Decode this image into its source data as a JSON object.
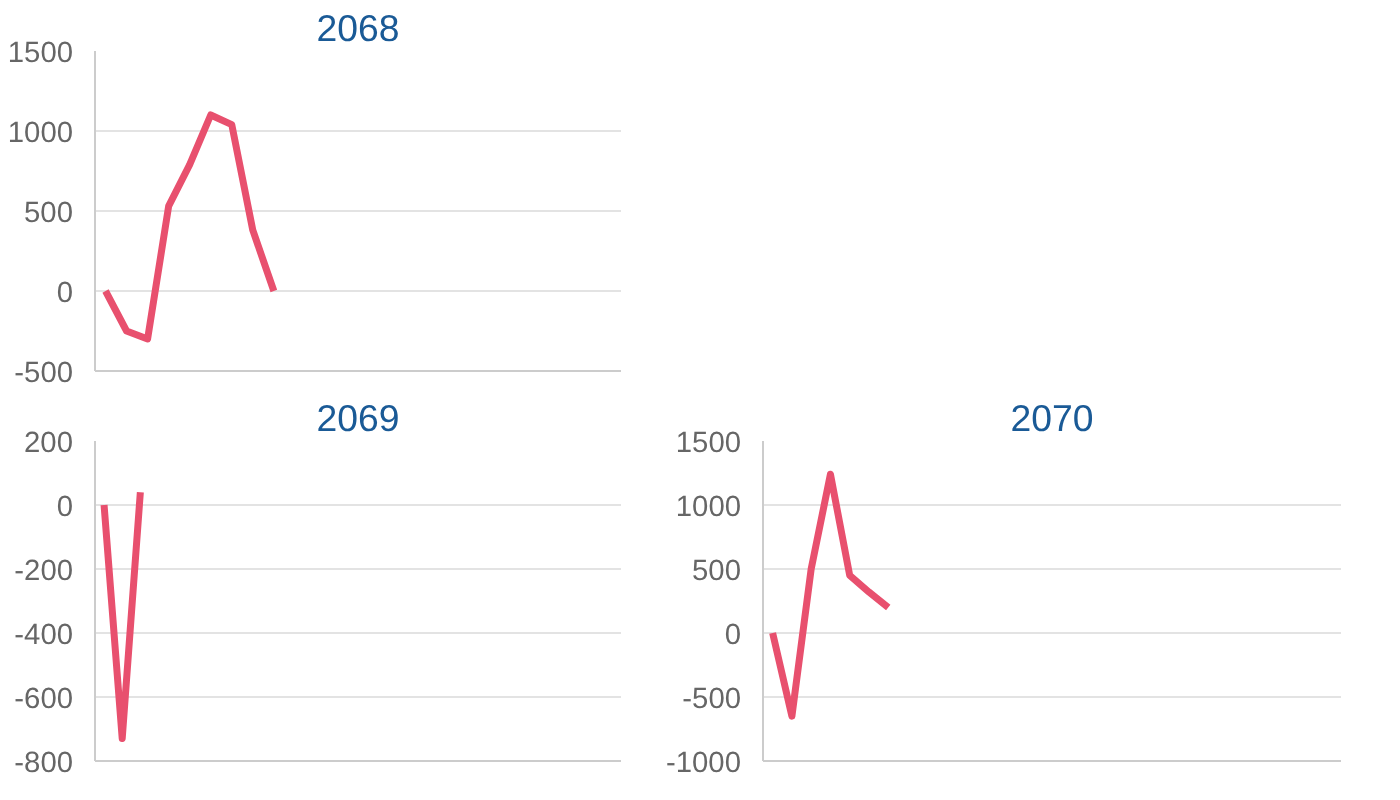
{
  "chart_data": [
    {
      "type": "line",
      "title": "2068",
      "categories": [
        null,
        null,
        null,
        null,
        null,
        null,
        null,
        null,
        null,
        null,
        null,
        null,
        null,
        null,
        null,
        null,
        null,
        null,
        null,
        null,
        null,
        null,
        null,
        null,
        null
      ],
      "series": [
        {
          "color": "#e8506e",
          "values": [
            0,
            -250,
            -300,
            530,
            790,
            1100,
            1040,
            380,
            0,
            null,
            null,
            null,
            null,
            null,
            null,
            null,
            null,
            null,
            null,
            null,
            null,
            null,
            null,
            null,
            null
          ]
        }
      ],
      "ylim": [
        -500,
        1500
      ],
      "yticks": [
        -500,
        0,
        500,
        1000,
        1500
      ],
      "grid": "y",
      "tick_labels": "y",
      "marker": "none",
      "line_style": "solid"
    },
    {
      "type": "line",
      "title": "2069",
      "categories": [
        null,
        null,
        null,
        null,
        null,
        null,
        null,
        null,
        null,
        null,
        null,
        null,
        null,
        null,
        null,
        null,
        null,
        null,
        null,
        null,
        null,
        null,
        null,
        null,
        null,
        null,
        null,
        null,
        null
      ],
      "series": [
        {
          "color": "#e8506e",
          "values": [
            0,
            -730,
            40,
            null,
            null,
            null,
            null,
            null,
            null,
            null,
            null,
            null,
            null,
            null,
            null,
            null,
            null,
            null,
            null,
            null,
            null,
            null,
            null,
            null,
            null,
            null,
            null,
            null,
            null
          ]
        }
      ],
      "ylim": [
        -800,
        200
      ],
      "yticks": [
        -800,
        -600,
        -400,
        -200,
        0,
        200
      ],
      "grid": "y",
      "tick_labels": "y",
      "marker": "none",
      "line_style": "solid"
    },
    {
      "type": "line",
      "title": "2070",
      "categories": [
        null,
        null,
        null,
        null,
        null,
        null,
        null,
        null,
        null,
        null,
        null,
        null,
        null,
        null,
        null,
        null,
        null,
        null,
        null,
        null,
        null,
        null,
        null,
        null,
        null,
        null,
        null,
        null,
        null,
        null
      ],
      "series": [
        {
          "color": "#e8506e",
          "values": [
            0,
            -650,
            500,
            1240,
            450,
            320,
            200,
            null,
            null,
            null,
            null,
            null,
            null,
            null,
            null,
            null,
            null,
            null,
            null,
            null,
            null,
            null,
            null,
            null,
            null,
            null,
            null,
            null,
            null,
            null
          ]
        }
      ],
      "ylim": [
        -1000,
        1500
      ],
      "yticks": [
        -1000,
        -500,
        0,
        500,
        1000,
        1500
      ],
      "grid": "y",
      "tick_labels": "y",
      "marker": "none",
      "line_style": "solid"
    }
  ]
}
